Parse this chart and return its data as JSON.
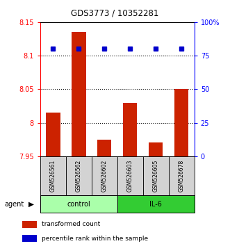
{
  "title": "GDS3773 / 10352281",
  "samples": [
    "GSM526561",
    "GSM526562",
    "GSM526602",
    "GSM526603",
    "GSM526605",
    "GSM526678"
  ],
  "red_values": [
    8.015,
    8.135,
    7.975,
    8.03,
    7.97,
    8.05
  ],
  "blue_values_pct": [
    80,
    80,
    80,
    80,
    80,
    80
  ],
  "ylim_left": [
    7.95,
    8.15
  ],
  "ylim_right": [
    0,
    100
  ],
  "yticks_left": [
    7.95,
    8.0,
    8.05,
    8.1,
    8.15
  ],
  "ytick_labels_left": [
    "7.95",
    "8",
    "8.05",
    "8.1",
    "8.15"
  ],
  "yticks_right": [
    0,
    25,
    50,
    75,
    100
  ],
  "ytick_labels_right": [
    "0",
    "25",
    "50",
    "75",
    "100%"
  ],
  "bar_color": "#CC2200",
  "dot_color": "#0000CC",
  "bar_width": 0.55,
  "base_value": 7.95,
  "legend_red": "transformed count",
  "legend_blue": "percentile rank within the sample",
  "control_color": "#AAFFAA",
  "il6_color": "#33CC33",
  "sample_box_color": "#D3D3D3"
}
